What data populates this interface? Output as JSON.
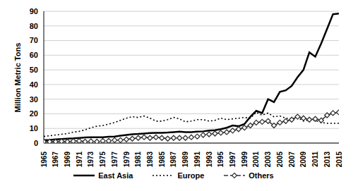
{
  "chart_data": {
    "type": "line",
    "y_label": "Million Metric Tons",
    "x": [
      1965,
      1966,
      1967,
      1968,
      1969,
      1970,
      1971,
      1972,
      1973,
      1974,
      1975,
      1976,
      1977,
      1978,
      1979,
      1980,
      1981,
      1982,
      1983,
      1984,
      1985,
      1986,
      1987,
      1988,
      1989,
      1990,
      1991,
      1992,
      1993,
      1994,
      1995,
      1996,
      1997,
      1998,
      1999,
      2000,
      2001,
      2002,
      2003,
      2004,
      2005,
      2006,
      2007,
      2008,
      2009,
      2010,
      2011,
      2012,
      2013,
      2014,
      2015
    ],
    "xlim": [
      1965,
      2015
    ],
    "xticks": [
      1965,
      1967,
      1969,
      1971,
      1973,
      1975,
      1977,
      1979,
      1981,
      1983,
      1985,
      1987,
      1989,
      1991,
      1993,
      1995,
      1997,
      1999,
      2001,
      2003,
      2005,
      2007,
      2009,
      2011,
      2013,
      2015
    ],
    "ylim": [
      0,
      90
    ],
    "yticks": [
      0,
      10,
      20,
      30,
      40,
      50,
      60,
      70,
      80,
      90
    ],
    "grid": true,
    "legend": "bottom",
    "series": [
      {
        "name": "East Asia",
        "color": "#000000",
        "line_style": "solid",
        "values": [
          2,
          2.2,
          2.5,
          2.8,
          3,
          3.2,
          3.5,
          3.8,
          4,
          4,
          4,
          4.3,
          4.5,
          5,
          5.5,
          6,
          6.2,
          6.5,
          6.8,
          7,
          7,
          7.2,
          7.5,
          7.8,
          7.5,
          7.5,
          7.8,
          8,
          8.5,
          8.8,
          9.5,
          10.5,
          12,
          11.5,
          13,
          18,
          22,
          20.5,
          30,
          28,
          35,
          36,
          39,
          45,
          50,
          62,
          59,
          68,
          78,
          88,
          88.5
        ]
      },
      {
        "name": "Europe",
        "color": "#000000",
        "line_style": "dotted",
        "values": [
          4.5,
          5,
          5.5,
          6,
          6.5,
          7.5,
          8,
          9,
          10.5,
          11.5,
          12,
          13,
          14,
          15.5,
          17,
          18,
          17.5,
          18.5,
          17,
          15,
          15,
          16,
          17.5,
          16.5,
          14.5,
          15,
          16,
          16,
          15,
          15.5,
          17,
          16,
          16.5,
          17,
          17.5,
          17,
          21,
          19,
          20.5,
          18,
          18.5,
          17,
          16.5,
          17.5,
          15,
          16,
          15.5,
          14,
          13.5,
          13.5,
          13.5
        ]
      },
      {
        "name": "Others",
        "color": "#333333",
        "line_style": "dashed",
        "marker": "diamond",
        "values": [
          1,
          1,
          1,
          1.2,
          1,
          1.3,
          1.5,
          1,
          1.2,
          1,
          1.5,
          1.5,
          2,
          2,
          2.5,
          3,
          3.5,
          4,
          3.5,
          4,
          3.5,
          3,
          3.5,
          3.5,
          3.5,
          4,
          4.5,
          5.5,
          6,
          6.5,
          7,
          7.5,
          8.5,
          9.5,
          10.5,
          12,
          14,
          14.5,
          15,
          12,
          14,
          15,
          16,
          18,
          17,
          16,
          16.5,
          15.5,
          19,
          20.5,
          21
        ]
      }
    ]
  }
}
